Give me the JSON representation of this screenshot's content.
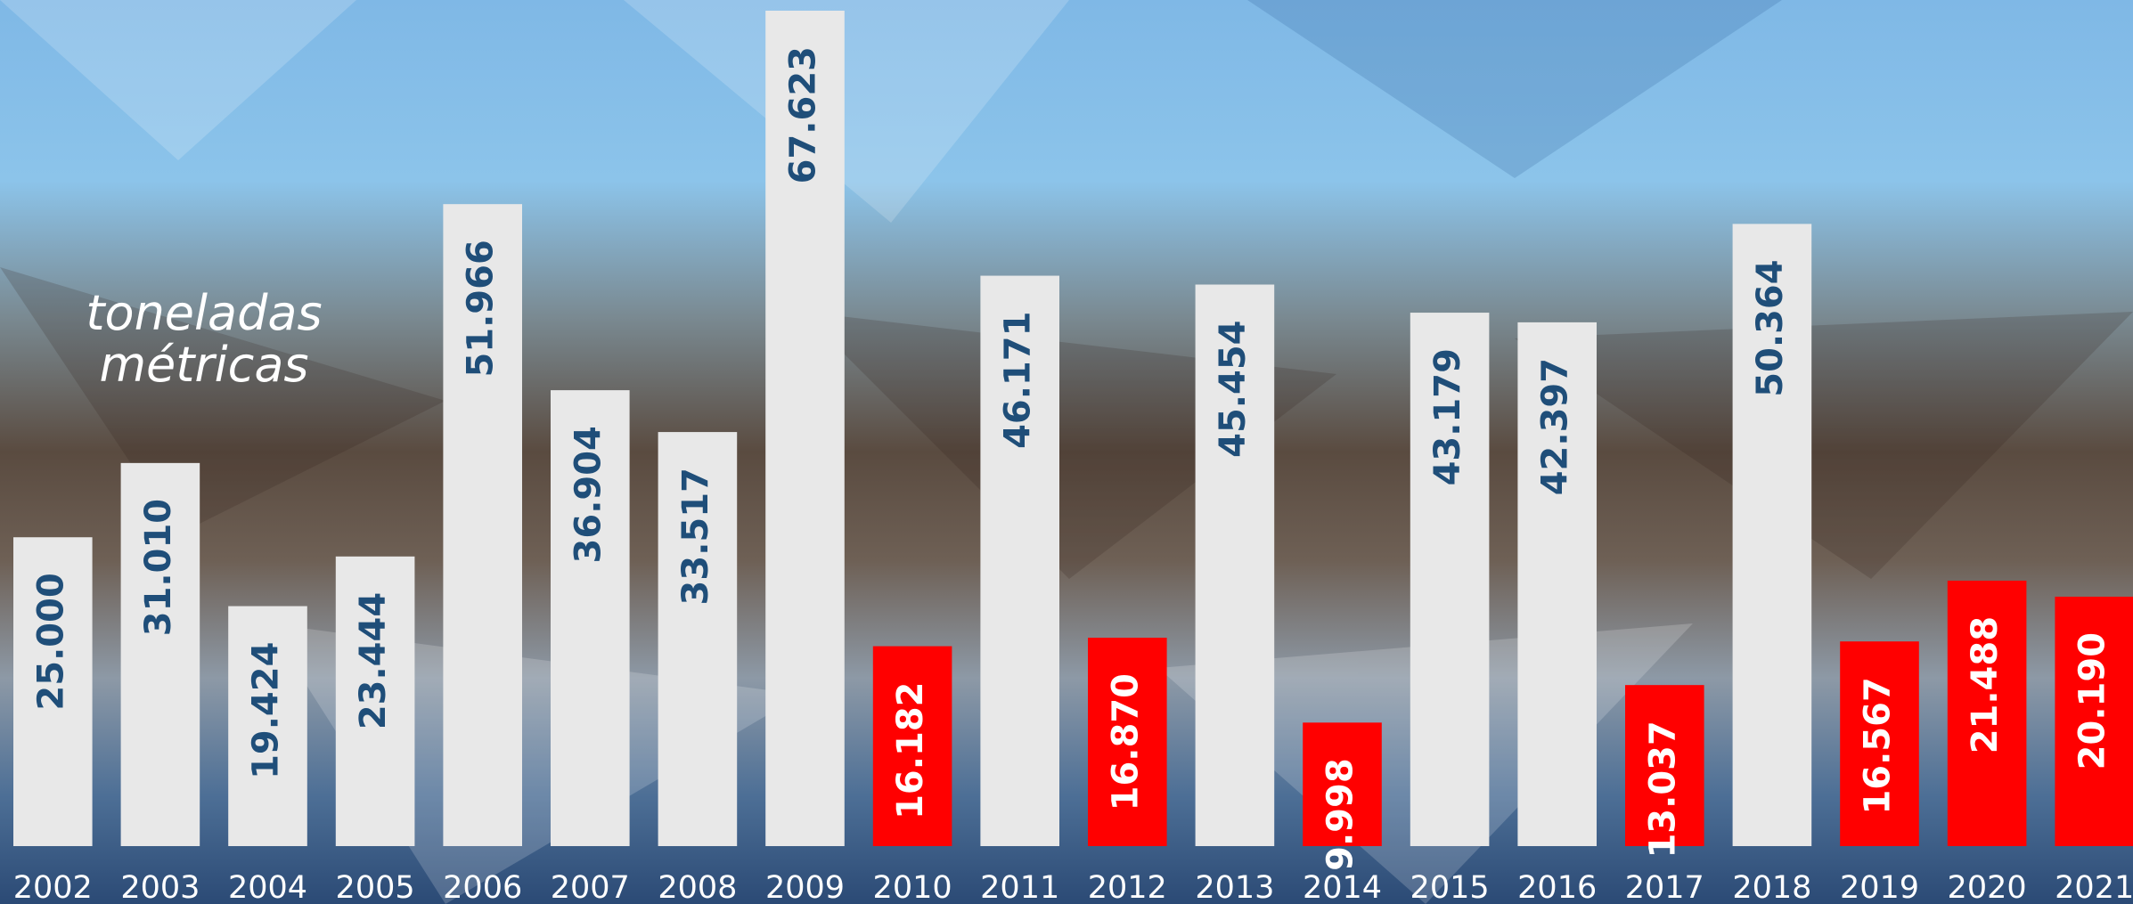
{
  "chart_data": {
    "type": "bar",
    "annotation": [
      "toneladas",
      "métricas"
    ],
    "categories": [
      "2002",
      "2003",
      "2004",
      "2005",
      "2006",
      "2007",
      "2008",
      "2009",
      "2010",
      "2011",
      "2012",
      "2013",
      "2014",
      "2015",
      "2016",
      "2017",
      "2018",
      "2019",
      "2020",
      "2021"
    ],
    "values": [
      25000,
      31010,
      19424,
      23444,
      51966,
      36904,
      33517,
      67623,
      16182,
      46171,
      16870,
      45454,
      9998,
      43179,
      42397,
      13037,
      50364,
      16567,
      21488,
      20190
    ],
    "value_labels": [
      "25.000",
      "31.010",
      "19.424",
      "23.444",
      "51.966",
      "36.904",
      "33.517",
      "67.623",
      "16.182",
      "46.171",
      "16.870",
      "45.454",
      "9.998",
      "43.179",
      "42.397",
      "13.037",
      "50.364",
      "16.567",
      "21.488",
      "20.190"
    ],
    "colors": [
      "#e8e8e8",
      "#e8e8e8",
      "#e8e8e8",
      "#e8e8e8",
      "#e8e8e8",
      "#e8e8e8",
      "#e8e8e8",
      "#e8e8e8",
      "#ff0000",
      "#e8e8e8",
      "#ff0000",
      "#e8e8e8",
      "#ff0000",
      "#e8e8e8",
      "#e8e8e8",
      "#ff0000",
      "#e8e8e8",
      "#ff0000",
      "#ff0000",
      "#ff0000"
    ],
    "label_colors": [
      "#1f4e79",
      "#1f4e79",
      "#1f4e79",
      "#1f4e79",
      "#1f4e79",
      "#1f4e79",
      "#1f4e79",
      "#1f4e79",
      "#ffffff",
      "#1f4e79",
      "#ffffff",
      "#1f4e79",
      "#ffffff",
      "#1f4e79",
      "#1f4e79",
      "#ffffff",
      "#1f4e79",
      "#ffffff",
      "#ffffff",
      "#ffffff"
    ]
  }
}
